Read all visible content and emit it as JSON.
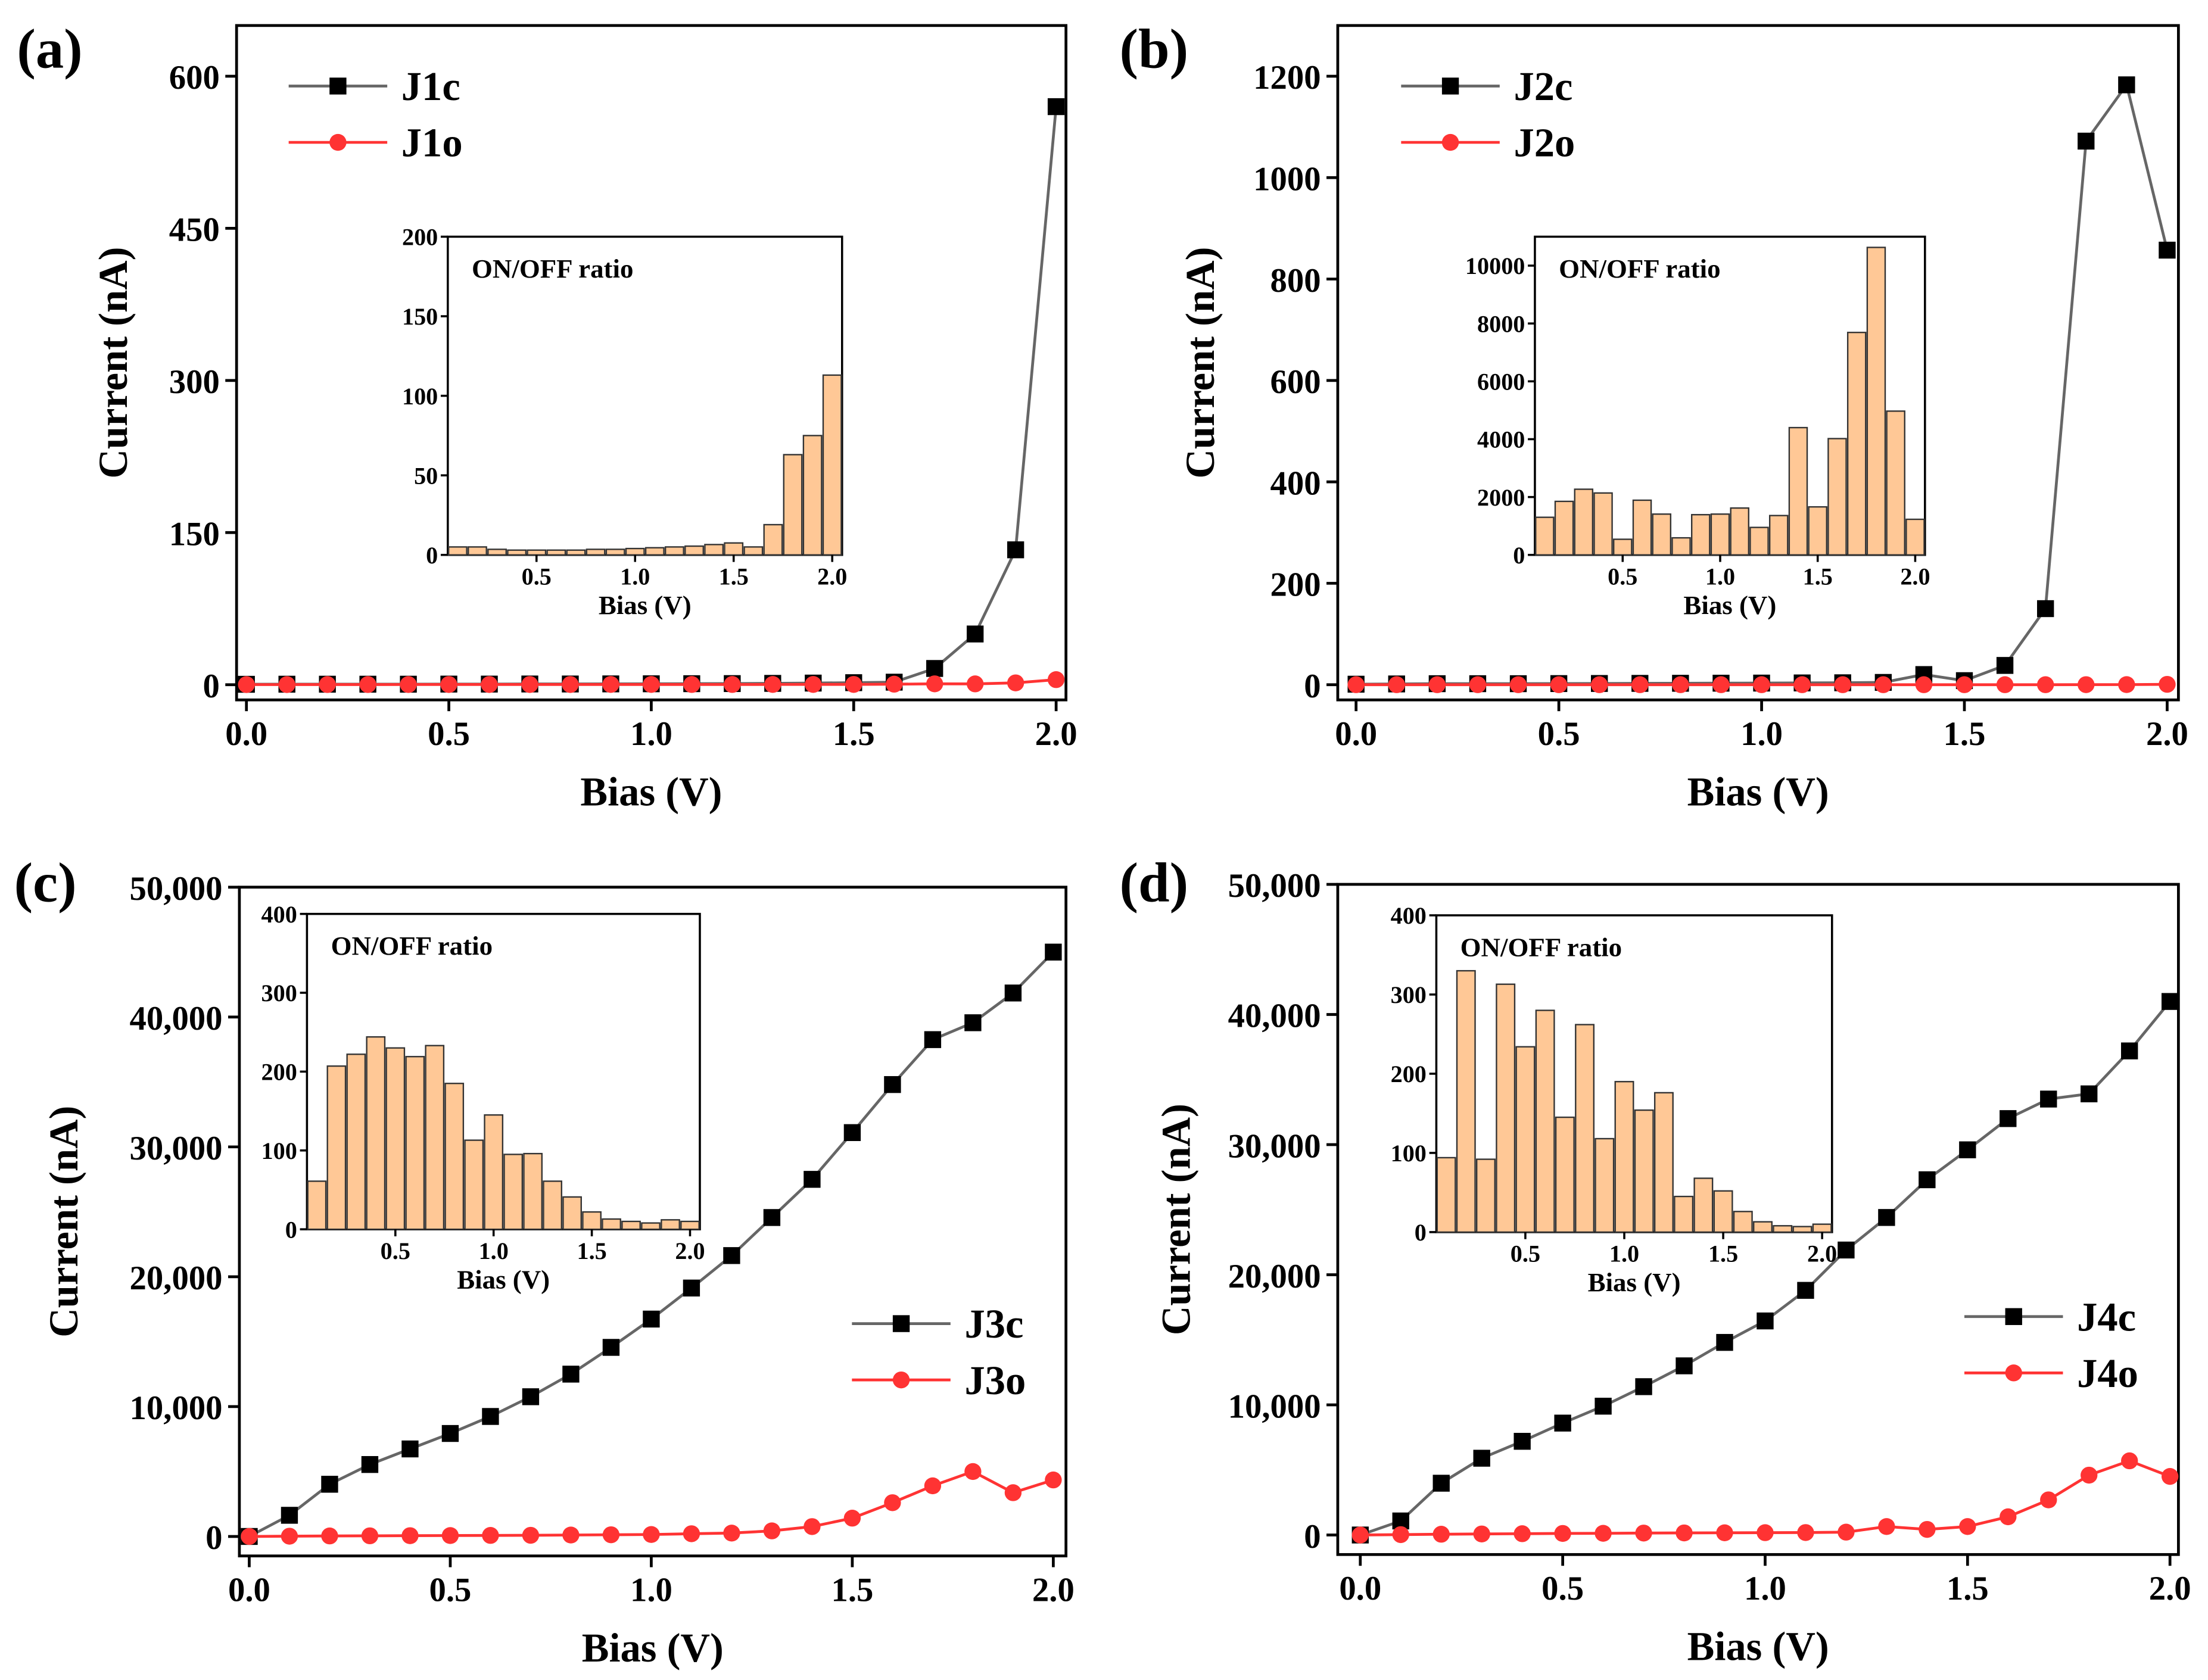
{
  "chart_data": [
    {
      "panel_label": "(a)",
      "type": "line",
      "xlabel": "Bias (V)",
      "ylabel": "Current (nA)",
      "xlim": [
        0,
        2.0
      ],
      "ylim": [
        -15,
        650
      ],
      "xticks": [
        "0.0",
        "0.5",
        "1.0",
        "1.5",
        "2.0"
      ],
      "xtick_values": [
        0,
        0.5,
        1,
        1.5,
        2
      ],
      "yticks": [
        "0",
        "150",
        "300",
        "450",
        "600"
      ],
      "ytick_values": [
        0,
        150,
        300,
        450,
        600
      ],
      "legend_position": "top-left",
      "x": [
        0,
        0.1,
        0.2,
        0.3,
        0.4,
        0.5,
        0.6,
        0.7,
        0.8,
        0.9,
        1.0,
        1.1,
        1.2,
        1.3,
        1.4,
        1.5,
        1.6,
        1.7,
        1.8,
        1.9,
        2.0
      ],
      "series": [
        {
          "name": "J1c",
          "color": "#000000",
          "marker": "square",
          "values": [
            0.4,
            0.5,
            0.5,
            0.5,
            0.5,
            0.6,
            0.6,
            0.7,
            0.7,
            0.8,
            0.9,
            1,
            1.1,
            1.3,
            1.6,
            2,
            2.5,
            16,
            50,
            133,
            570
          ]
        },
        {
          "name": "J1o",
          "color": "#ff3333",
          "marker": "circle",
          "values": [
            0.1,
            0.1,
            0.15,
            0.15,
            0.17,
            0.2,
            0.2,
            0.2,
            0.2,
            0.23,
            0.23,
            0.22,
            0.22,
            0.24,
            0.25,
            0.27,
            0.5,
            0.84,
            0.8,
            1.8,
            5
          ]
        }
      ],
      "inset": {
        "type": "bar",
        "title": "ON/OFF ratio",
        "xlabel": "Bias (V)",
        "xlim": [
          0.05,
          2.05
        ],
        "ylim": [
          0,
          200
        ],
        "xticks": [
          "0.5",
          "1.0",
          "1.5",
          "2.0"
        ],
        "xtick_values": [
          0.5,
          1,
          1.5,
          2
        ],
        "yticks": [
          "0",
          "50",
          "100",
          "150",
          "200"
        ],
        "ytick_values": [
          0,
          50,
          100,
          150,
          200
        ],
        "x": [
          0.1,
          0.2,
          0.3,
          0.4,
          0.5,
          0.6,
          0.7,
          0.8,
          0.9,
          1.0,
          1.1,
          1.2,
          1.3,
          1.4,
          1.5,
          1.6,
          1.7,
          1.8,
          1.9,
          2.0
        ],
        "values": [
          5,
          5,
          3.5,
          3,
          3,
          3,
          3,
          3.5,
          3.5,
          4,
          4.5,
          5,
          5.5,
          6.5,
          7.5,
          5,
          19,
          63,
          75,
          113
        ]
      }
    },
    {
      "panel_label": "(b)",
      "type": "line",
      "xlabel": "Bias (V)",
      "ylabel": "Current (nA)",
      "xlim": [
        0,
        2.0
      ],
      "ylim": [
        -30,
        1300
      ],
      "xticks": [
        "0.0",
        "0.5",
        "1.0",
        "1.5",
        "2.0"
      ],
      "xtick_values": [
        0,
        0.5,
        1,
        1.5,
        2
      ],
      "yticks": [
        "0",
        "200",
        "400",
        "600",
        "800",
        "1000",
        "1200"
      ],
      "ytick_values": [
        0,
        200,
        400,
        600,
        800,
        1000,
        1200
      ],
      "legend_position": "top-left",
      "x": [
        0,
        0.1,
        0.2,
        0.3,
        0.4,
        0.5,
        0.6,
        0.7,
        0.8,
        0.9,
        1.0,
        1.1,
        1.2,
        1.3,
        1.4,
        1.5,
        1.6,
        1.7,
        1.8,
        1.9,
        2.0
      ],
      "series": [
        {
          "name": "J2c",
          "color": "#000000",
          "marker": "square",
          "values": [
            1,
            1.5,
            2,
            2,
            2,
            2.2,
            2.4,
            2.6,
            2.8,
            3,
            3.2,
            3.5,
            3.8,
            4.5,
            20,
            8,
            38,
            150,
            1072,
            1183,
            857
          ]
        },
        {
          "name": "J2o",
          "color": "#ff3333",
          "marker": "circle",
          "values": [
            0,
            0,
            0,
            0,
            0,
            0,
            0,
            0,
            0,
            0,
            0,
            0,
            0,
            0,
            0,
            0,
            0,
            0,
            0.1,
            0.2,
            0.7
          ]
        }
      ],
      "inset": {
        "type": "bar",
        "title": "ON/OFF ratio",
        "xlabel": "Bias (V)",
        "xlim": [
          0.05,
          2.05
        ],
        "ylim": [
          0,
          11000
        ],
        "xticks": [
          "0.5",
          "1.0",
          "1.5",
          "2.0"
        ],
        "xtick_values": [
          0.5,
          1,
          1.5,
          2
        ],
        "yticks": [
          "0",
          "2000",
          "4000",
          "6000",
          "8000",
          "10000"
        ],
        "ytick_values": [
          0,
          2000,
          4000,
          6000,
          8000,
          10000
        ],
        "x": [
          0.1,
          0.2,
          0.3,
          0.4,
          0.5,
          0.6,
          0.7,
          0.8,
          0.9,
          1.0,
          1.1,
          1.2,
          1.3,
          1.4,
          1.5,
          1.6,
          1.7,
          1.8,
          1.9,
          2.0
        ],
        "values": [
          1300,
          1850,
          2270,
          2140,
          540,
          1890,
          1410,
          590,
          1390,
          1410,
          1620,
          950,
          1360,
          4400,
          1660,
          4020,
          7690,
          10630,
          4970,
          1230
        ]
      }
    },
    {
      "panel_label": "(c)",
      "type": "line",
      "xlabel": "Bias (V)",
      "ylabel": "Current (nA)",
      "xlim": [
        0,
        2.0
      ],
      "ylim": [
        -1500,
        50000
      ],
      "xticks": [
        "0.0",
        "0.5",
        "1.0",
        "1.5",
        "2.0"
      ],
      "xtick_values": [
        0,
        0.5,
        1,
        1.5,
        2
      ],
      "yticks": [
        "0",
        "10,000",
        "20,000",
        "30,000",
        "40,000",
        "50,000"
      ],
      "ytick_values": [
        0,
        10000,
        20000,
        30000,
        40000,
        50000
      ],
      "legend_position": "bottom-right",
      "x": [
        0,
        0.1,
        0.2,
        0.3,
        0.4,
        0.5,
        0.6,
        0.7,
        0.8,
        0.9,
        1.0,
        1.1,
        1.2,
        1.3,
        1.4,
        1.5,
        1.6,
        1.7,
        1.8,
        1.9,
        2.0
      ],
      "series": [
        {
          "name": "J3c",
          "color": "#000000",
          "marker": "square",
          "values": [
            0,
            1630,
            4020,
            5540,
            6740,
            7930,
            9240,
            10760,
            12500,
            14560,
            16740,
            19130,
            21630,
            24560,
            27500,
            31100,
            34800,
            38260,
            39560,
            41850,
            45000
          ]
        },
        {
          "name": "J3o",
          "color": "#ff3333",
          "marker": "circle",
          "values": [
            0,
            20,
            40,
            50,
            60,
            70,
            80,
            90,
            110,
            130,
            150,
            210,
            260,
            430,
            760,
            1410,
            2600,
            3900,
            5000,
            3370,
            4350
          ]
        }
      ],
      "inset": {
        "type": "bar",
        "title": "ON/OFF ratio",
        "xlabel": "Bias (V)",
        "xlim": [
          0.05,
          2.05
        ],
        "ylim": [
          0,
          400
        ],
        "xticks": [
          "0.5",
          "1.0",
          "1.5",
          "2.0"
        ],
        "xtick_values": [
          0.5,
          1,
          1.5,
          2
        ],
        "yticks": [
          "0",
          "100",
          "200",
          "300",
          "400"
        ],
        "ytick_values": [
          0,
          100,
          200,
          300,
          400
        ],
        "x": [
          0.1,
          0.2,
          0.3,
          0.4,
          0.5,
          0.6,
          0.7,
          0.8,
          0.9,
          1.0,
          1.1,
          1.2,
          1.3,
          1.4,
          1.5,
          1.6,
          1.7,
          1.8,
          1.9,
          2.0
        ],
        "values": [
          61,
          207,
          222,
          244,
          230,
          219,
          233,
          185,
          113,
          145,
          95,
          96,
          61,
          41,
          22,
          13,
          10,
          8,
          12,
          10
        ]
      }
    },
    {
      "panel_label": "(d)",
      "type": "line",
      "xlabel": "Bias (V)",
      "ylabel": "Current (nA)",
      "xlim": [
        0,
        2.0
      ],
      "ylim": [
        -1500,
        50000
      ],
      "xticks": [
        "0.0",
        "0.5",
        "1.0",
        "1.5",
        "2.0"
      ],
      "xtick_values": [
        0,
        0.5,
        1,
        1.5,
        2
      ],
      "yticks": [
        "0",
        "10,000",
        "20,000",
        "30,000",
        "40,000",
        "50,000"
      ],
      "ytick_values": [
        0,
        10000,
        20000,
        30000,
        40000,
        50000
      ],
      "legend_position": "bottom-right",
      "x": [
        0,
        0.1,
        0.2,
        0.3,
        0.4,
        0.5,
        0.6,
        0.7,
        0.8,
        0.9,
        1.0,
        1.1,
        1.2,
        1.3,
        1.4,
        1.5,
        1.6,
        1.7,
        1.8,
        1.9,
        2.0
      ],
      "series": [
        {
          "name": "J4c",
          "color": "#000000",
          "marker": "square",
          "values": [
            0,
            1080,
            3980,
            5900,
            7200,
            8600,
            9900,
            11400,
            13000,
            14800,
            16450,
            18800,
            21900,
            24400,
            27300,
            29600,
            32000,
            33500,
            33900,
            37200,
            41000
          ]
        },
        {
          "name": "J4o",
          "color": "#ff3333",
          "marker": "circle",
          "values": [
            0,
            30,
            60,
            80,
            100,
            120,
            130,
            150,
            160,
            170,
            180,
            190,
            220,
            650,
            430,
            650,
            1400,
            2700,
            4600,
            5700,
            4500
          ]
        }
      ],
      "inset": {
        "type": "bar",
        "title": "ON/OFF ratio",
        "xlabel": "Bias (V)",
        "xlim": [
          0.05,
          2.05
        ],
        "ylim": [
          0,
          400
        ],
        "xticks": [
          "0.5",
          "1.0",
          "1.5",
          "2.0"
        ],
        "xtick_values": [
          0.5,
          1,
          1.5,
          2
        ],
        "yticks": [
          "0",
          "100",
          "200",
          "300",
          "400"
        ],
        "ytick_values": [
          0,
          100,
          200,
          300,
          400
        ],
        "x": [
          0.1,
          0.2,
          0.3,
          0.4,
          0.5,
          0.6,
          0.7,
          0.8,
          0.9,
          1.0,
          1.1,
          1.2,
          1.3,
          1.4,
          1.5,
          1.6,
          1.7,
          1.8,
          1.9,
          2.0
        ],
        "values": [
          94,
          330,
          92,
          313,
          234,
          280,
          145,
          262,
          118,
          190,
          154,
          176,
          45,
          68,
          52,
          26,
          13,
          8,
          7,
          10
        ]
      }
    }
  ],
  "colors": {
    "bar_fill": "#ffc896",
    "line_c": "#666666"
  }
}
